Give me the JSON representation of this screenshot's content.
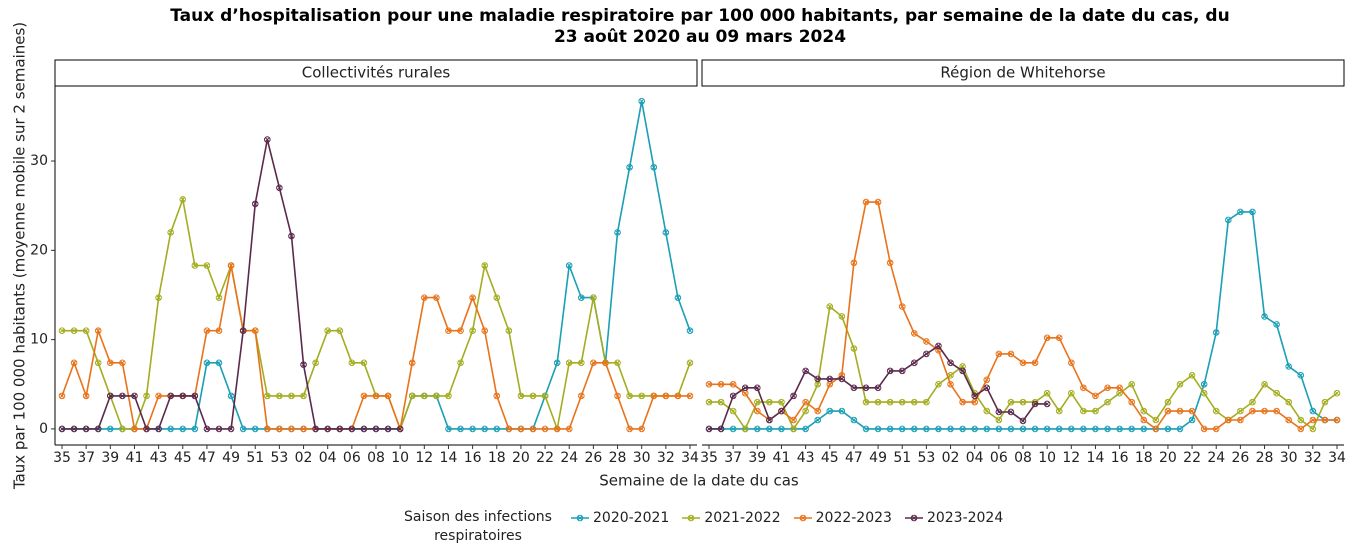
{
  "chart_data": {
    "type": "line",
    "title": "Taux d’hospitalisation pour une maladie respiratoire par 100 000 habitants, par semaine de la date du cas, du 23 août 2020 au 09 mars 2024",
    "xlabel": "Semaine de la date du cas",
    "ylabel": "Taux par 100 000 habitants (moyenne mobile sur 2 semaines)",
    "legend_title": "Saison des infections respiratoires",
    "categories": [
      "35",
      null,
      "37",
      null,
      "39",
      null,
      "41",
      null,
      "43",
      null,
      "45",
      null,
      "47",
      null,
      "49",
      null,
      "51",
      null,
      "53",
      null,
      "02",
      null,
      "04",
      null,
      "06",
      null,
      "08",
      null,
      "10",
      null,
      "12",
      null,
      "14",
      null,
      "16",
      null,
      "18",
      null,
      "20",
      null,
      "22",
      null,
      "24",
      null,
      "26",
      null,
      "28",
      null,
      "30",
      null,
      "32",
      null,
      "34"
    ],
    "ylim": [
      -1.8,
      38.4
    ],
    "yticks": [
      0,
      10,
      20,
      30
    ],
    "series": [
      {
        "name": "2020-2021",
        "color": "#1a9fb5"
      },
      {
        "name": "2021-2022",
        "color": "#a3ad1f"
      },
      {
        "name": "2022-2023",
        "color": "#e8731a"
      },
      {
        "name": "2023-2024",
        "color": "#5b2a4b"
      }
    ],
    "facets": [
      {
        "title": "Collectivités rurales",
        "series": [
          {
            "values": [
              0,
              0,
              0,
              0,
              0,
              0,
              0,
              0,
              0,
              0,
              0,
              0,
              7.4,
              7.4,
              3.7,
              0,
              0,
              0,
              0,
              0,
              0,
              0,
              0,
              0,
              0,
              0,
              0,
              0,
              0,
              3.7,
              3.7,
              3.7,
              0,
              0,
              0,
              0,
              0,
              0,
              0,
              0,
              3.7,
              7.4,
              18.3,
              14.7,
              14.7,
              7.4,
              22,
              29.3,
              36.7,
              29.3,
              22,
              14.7,
              11
            ]
          },
          {
            "values": [
              11,
              11,
              11,
              7.4,
              3.7,
              0,
              0,
              3.7,
              14.7,
              22,
              25.7,
              18.3,
              18.3,
              14.7,
              18.3,
              11,
              11,
              3.7,
              3.7,
              3.7,
              3.7,
              7.4,
              11,
              11,
              7.4,
              7.4,
              3.7,
              3.7,
              0,
              3.7,
              3.7,
              3.7,
              3.7,
              7.4,
              11,
              18.3,
              14.7,
              11,
              3.7,
              3.7,
              3.7,
              0,
              7.4,
              7.4,
              14.7,
              7.4,
              7.4,
              3.7,
              3.7,
              3.7,
              3.7,
              3.7,
              7.4
            ]
          },
          {
            "values": [
              3.7,
              7.4,
              3.7,
              11,
              7.4,
              7.4,
              0,
              0,
              3.7,
              3.7,
              3.7,
              3.7,
              11,
              11,
              18.3,
              11,
              11,
              0,
              0,
              0,
              0,
              0,
              0,
              0,
              0,
              3.7,
              3.7,
              3.7,
              0,
              7.4,
              14.7,
              14.7,
              11,
              11,
              14.7,
              11,
              3.7,
              0,
              0,
              0,
              0,
              0,
              0,
              3.7,
              7.4,
              7.4,
              3.7,
              0,
              0,
              3.7,
              3.7,
              3.7,
              3.7
            ]
          },
          {
            "values": [
              0,
              0,
              0,
              0,
              3.7,
              3.7,
              3.7,
              0,
              0,
              3.7,
              3.7,
              3.7,
              0,
              0,
              0,
              11,
              25.2,
              32.4,
              27,
              21.6,
              7.2,
              0,
              0,
              0,
              0,
              0,
              0,
              0,
              0,
              null,
              null,
              null,
              null,
              null,
              null,
              null,
              null,
              null,
              null,
              null,
              null,
              null,
              null,
              null,
              null,
              null,
              null,
              null,
              null,
              null,
              null,
              null,
              null
            ]
          }
        ]
      },
      {
        "title": "Région de Whitehorse",
        "series": [
          {
            "values": [
              0,
              0,
              0,
              0,
              0,
              0,
              0,
              0,
              0,
              1,
              2,
              2,
              1,
              0,
              0,
              0,
              0,
              0,
              0,
              0,
              0,
              0,
              0,
              0,
              0,
              0,
              0,
              0,
              0,
              0,
              0,
              0,
              0,
              0,
              0,
              0,
              0,
              0,
              0,
              0,
              1,
              5,
              10.8,
              23.4,
              24.3,
              24.3,
              12.6,
              11.7,
              7,
              6,
              2,
              1,
              1
            ]
          },
          {
            "values": [
              3,
              3,
              2,
              0,
              3,
              3,
              3,
              0,
              2,
              5,
              13.7,
              12.6,
              9,
              3,
              3,
              3,
              3,
              3,
              3,
              5,
              6,
              7,
              4,
              2,
              1,
              3,
              3,
              3,
              4,
              2,
              4,
              2,
              2,
              3,
              4,
              5,
              2,
              1,
              3,
              5,
              6,
              4,
              2,
              1,
              2,
              3,
              5,
              4,
              3,
              1,
              0,
              3,
              4
            ]
          },
          {
            "values": [
              5,
              5,
              5,
              4,
              2,
              1,
              2,
              1,
              3,
              2,
              5,
              6,
              18.6,
              25.4,
              25.4,
              18.6,
              13.7,
              10.7,
              9.8,
              8.8,
              5,
              3,
              3,
              5.5,
              8.4,
              8.4,
              7.4,
              7.4,
              10.2,
              10.2,
              7.4,
              4.6,
              3.7,
              4.6,
              4.6,
              3,
              1,
              0,
              2,
              2,
              2,
              0,
              0,
              1,
              1,
              2,
              2,
              2,
              1,
              0,
              1,
              1,
              1
            ]
          },
          {
            "values": [
              0,
              0,
              3.7,
              4.6,
              4.6,
              1,
              2,
              3.7,
              6.5,
              5.6,
              5.6,
              5.6,
              4.6,
              4.6,
              4.6,
              6.5,
              6.5,
              7.4,
              8.4,
              9.3,
              7.4,
              6.5,
              3.7,
              4.6,
              1.9,
              1.9,
              0.9,
              2.8,
              2.8,
              null,
              null,
              null,
              null,
              null,
              null,
              null,
              null,
              null,
              null,
              null,
              null,
              null,
              null,
              null,
              null,
              null,
              null,
              null,
              null,
              null,
              null,
              null,
              null
            ]
          }
        ]
      }
    ]
  }
}
